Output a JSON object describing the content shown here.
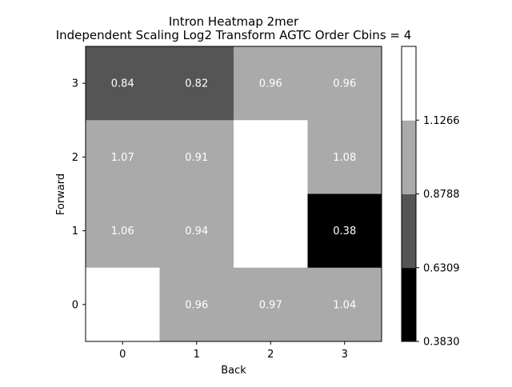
{
  "chart_data": {
    "type": "heatmap",
    "title": "Intron Heatmap 2mer",
    "subtitle": "Independent Scaling Log2 Transform AGTC Order Cbins = 4",
    "xlabel": "Back",
    "ylabel": "Forward",
    "x_ticks": [
      "0",
      "1",
      "2",
      "3"
    ],
    "y_ticks": [
      "0",
      "1",
      "2",
      "3"
    ],
    "cells": [
      {
        "x": 0,
        "y": 3,
        "label": "0.84",
        "bin": 1
      },
      {
        "x": 1,
        "y": 3,
        "label": "0.82",
        "bin": 1
      },
      {
        "x": 2,
        "y": 3,
        "label": "0.96",
        "bin": 2
      },
      {
        "x": 3,
        "y": 3,
        "label": "0.96",
        "bin": 2
      },
      {
        "x": 0,
        "y": 2,
        "label": "1.07",
        "bin": 2
      },
      {
        "x": 1,
        "y": 2,
        "label": "0.91",
        "bin": 2
      },
      {
        "x": 2,
        "y": 2,
        "label": "",
        "bin": 3
      },
      {
        "x": 3,
        "y": 2,
        "label": "1.08",
        "bin": 2
      },
      {
        "x": 0,
        "y": 1,
        "label": "1.06",
        "bin": 2
      },
      {
        "x": 1,
        "y": 1,
        "label": "0.94",
        "bin": 2
      },
      {
        "x": 2,
        "y": 1,
        "label": "",
        "bin": 3
      },
      {
        "x": 3,
        "y": 1,
        "label": "0.38",
        "bin": 0
      },
      {
        "x": 0,
        "y": 0,
        "label": "",
        "bin": 3
      },
      {
        "x": 1,
        "y": 0,
        "label": "0.96",
        "bin": 2
      },
      {
        "x": 2,
        "y": 0,
        "label": "0.97",
        "bin": 2
      },
      {
        "x": 3,
        "y": 0,
        "label": "1.04",
        "bin": 2
      }
    ],
    "bin_colors": [
      "#000000",
      "#555555",
      "#aaaaaa",
      "#ffffff"
    ],
    "colorbar": {
      "ticks": [
        "0.3830",
        "0.6309",
        "0.8788",
        "1.1266"
      ]
    },
    "legend": "colorbar-right",
    "grid": false
  }
}
